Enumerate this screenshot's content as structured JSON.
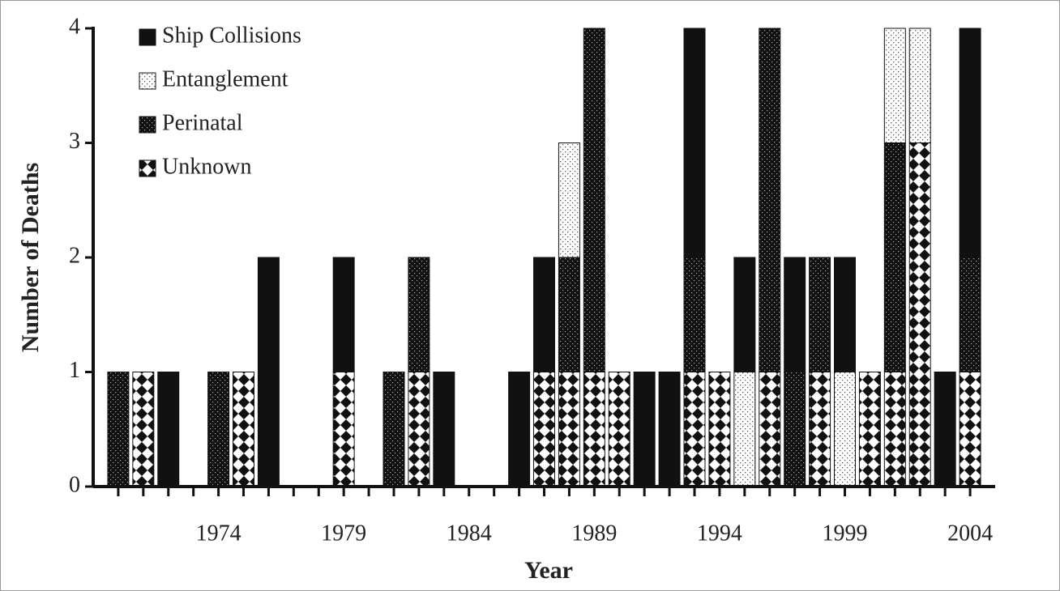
{
  "chart_data": {
    "type": "stacked-bar",
    "x_label": "Year",
    "y_label": "Number of Deaths",
    "x": [
      1970,
      1971,
      1972,
      1973,
      1974,
      1975,
      1976,
      1977,
      1978,
      1979,
      1980,
      1981,
      1982,
      1983,
      1984,
      1985,
      1986,
      1987,
      1988,
      1989,
      1990,
      1991,
      1992,
      1993,
      1994,
      1995,
      1996,
      1997,
      1998,
      1999,
      2000,
      2001,
      2002,
      2003,
      2004
    ],
    "xlim": [
      1969,
      2005
    ],
    "xticks": [
      1974,
      1979,
      1984,
      1989,
      1994,
      1999,
      2004
    ],
    "ylim": [
      0,
      4
    ],
    "yticks": [
      0,
      1,
      2,
      3,
      4
    ],
    "legend": "top-left",
    "series": [
      {
        "name": "Ship Collisions",
        "pattern": "solid",
        "values": [
          0,
          0,
          1,
          0,
          0,
          0,
          2,
          0,
          0,
          1,
          0,
          0,
          0,
          1,
          0,
          0,
          1,
          1,
          0,
          0,
          0,
          1,
          1,
          2,
          0,
          1,
          0,
          1,
          0,
          1,
          0,
          0,
          0,
          1,
          2
        ]
      },
      {
        "name": "Entanglement",
        "pattern": "dots-light",
        "values": [
          0,
          0,
          0,
          0,
          0,
          0,
          0,
          0,
          0,
          0,
          0,
          0,
          0,
          0,
          0,
          0,
          0,
          0,
          1,
          0,
          0,
          0,
          0,
          0,
          0,
          1,
          0,
          0,
          0,
          1,
          0,
          1,
          1,
          0,
          0
        ]
      },
      {
        "name": "Perinatal",
        "pattern": "dots-dark",
        "values": [
          1,
          0,
          0,
          0,
          1,
          0,
          0,
          0,
          0,
          0,
          0,
          1,
          1,
          0,
          0,
          0,
          0,
          0,
          1,
          3,
          0,
          0,
          0,
          1,
          0,
          0,
          3,
          1,
          1,
          0,
          0,
          2,
          0,
          0,
          1
        ]
      },
      {
        "name": "Unknown",
        "pattern": "diamonds",
        "values": [
          0,
          1,
          0,
          0,
          0,
          1,
          0,
          0,
          0,
          1,
          0,
          0,
          1,
          0,
          0,
          0,
          0,
          1,
          1,
          1,
          1,
          0,
          0,
          1,
          1,
          0,
          1,
          0,
          1,
          0,
          1,
          1,
          3,
          0,
          1
        ]
      }
    ]
  }
}
